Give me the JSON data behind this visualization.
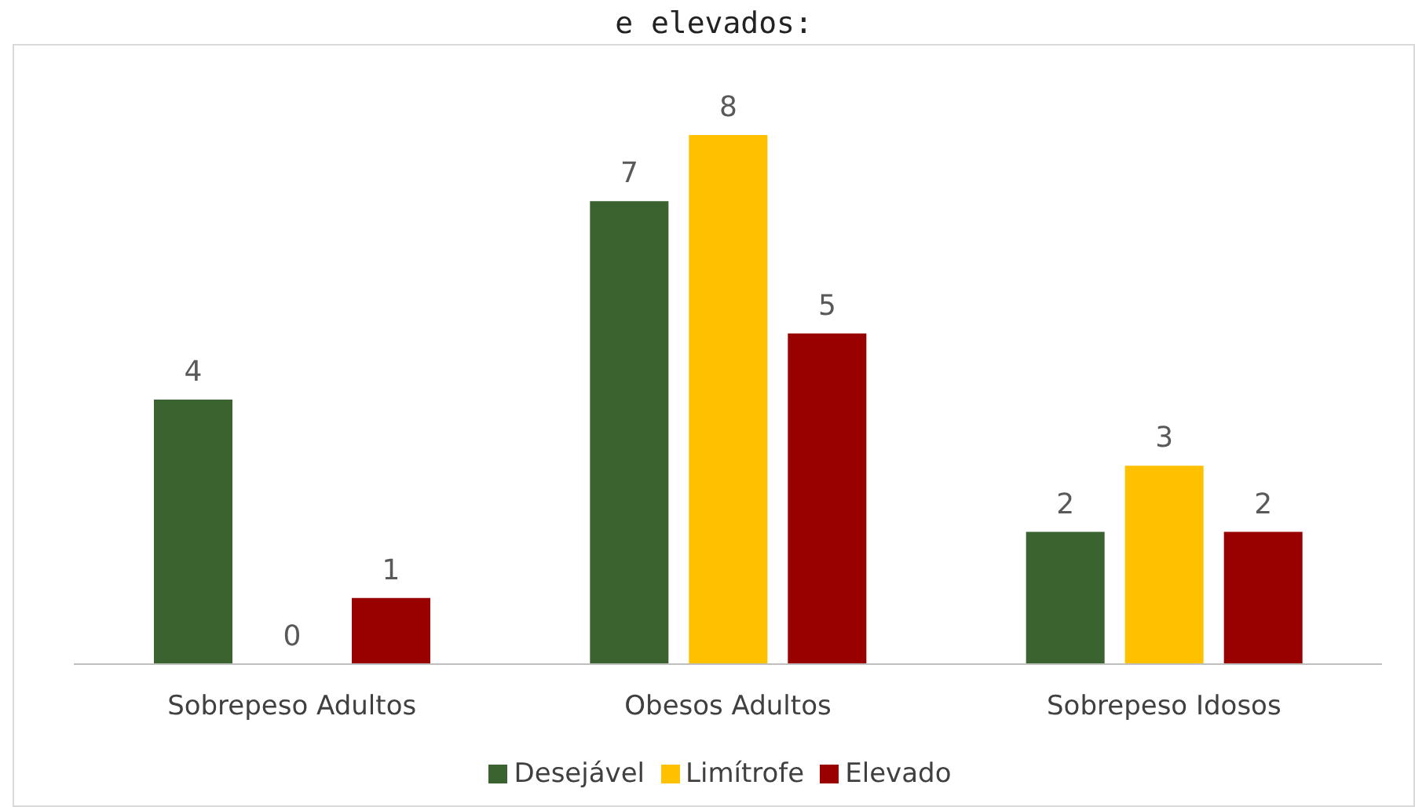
{
  "chart_data": {
    "type": "bar",
    "title": "e elevados:",
    "categories": [
      "Sobrepeso Adultos",
      "Obesos Adultos",
      "Sobrepeso Idosos"
    ],
    "series": [
      {
        "name": "Desejável",
        "color": "#3b6330",
        "values": [
          4,
          7,
          2
        ]
      },
      {
        "name": "Limítrofe",
        "color": "#ffc000",
        "values": [
          0,
          8,
          3
        ]
      },
      {
        "name": "Elevado",
        "color": "#990000",
        "values": [
          1,
          5,
          2
        ]
      }
    ],
    "data_labels": true,
    "legend": "bottom",
    "grid": false
  }
}
